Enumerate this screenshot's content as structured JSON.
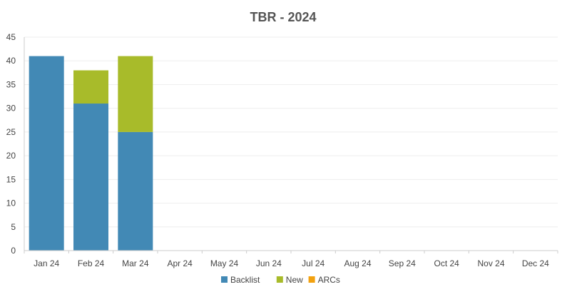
{
  "chart_data": {
    "type": "bar",
    "stacked": true,
    "title": "TBR - 2024",
    "xlabel": "",
    "ylabel": "",
    "categories": [
      "Jan 24",
      "Feb 24",
      "Mar 24",
      "Apr 24",
      "May 24",
      "Jun 24",
      "Jul 24",
      "Aug 24",
      "Sep 24",
      "Oct 24",
      "Nov 24",
      "Dec 24"
    ],
    "ylim": [
      0,
      45
    ],
    "yticks": [
      0,
      5,
      10,
      15,
      20,
      25,
      30,
      35,
      40,
      45
    ],
    "grid": true,
    "legend_position": "bottom",
    "series": [
      {
        "name": "Backlist",
        "color": "#4289b5",
        "values": [
          41,
          31,
          25,
          0,
          0,
          0,
          0,
          0,
          0,
          0,
          0,
          0
        ]
      },
      {
        "name": "New",
        "color": "#a8bb2a",
        "values": [
          0,
          7,
          16,
          0,
          0,
          0,
          0,
          0,
          0,
          0,
          0,
          0
        ]
      },
      {
        "name": "ARCs",
        "color": "#f2a10f",
        "values": [
          0,
          0,
          0,
          0,
          0,
          0,
          0,
          0,
          0,
          0,
          0,
          0
        ]
      }
    ]
  }
}
